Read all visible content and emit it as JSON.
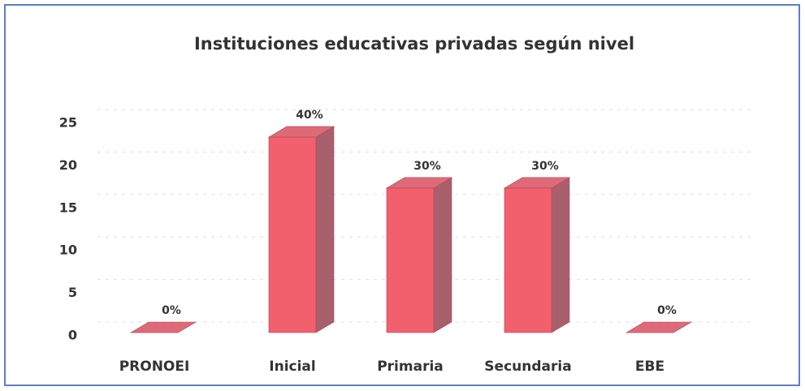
{
  "chart_data": {
    "type": "bar3d",
    "title": "Instituciones  educativas privadas según nivel",
    "categories": [
      "PRONOEI",
      "Inicial",
      "Primaria",
      "Secundaria",
      "EBE"
    ],
    "values": [
      0,
      23,
      17,
      17,
      0
    ],
    "data_labels": [
      "0%",
      "40%",
      "30%",
      "30%",
      "0%"
    ],
    "color": "#f2606e",
    "ylim": [
      0,
      25
    ],
    "yticks": [
      0,
      5,
      10,
      15,
      20,
      25
    ],
    "grid": true
  }
}
